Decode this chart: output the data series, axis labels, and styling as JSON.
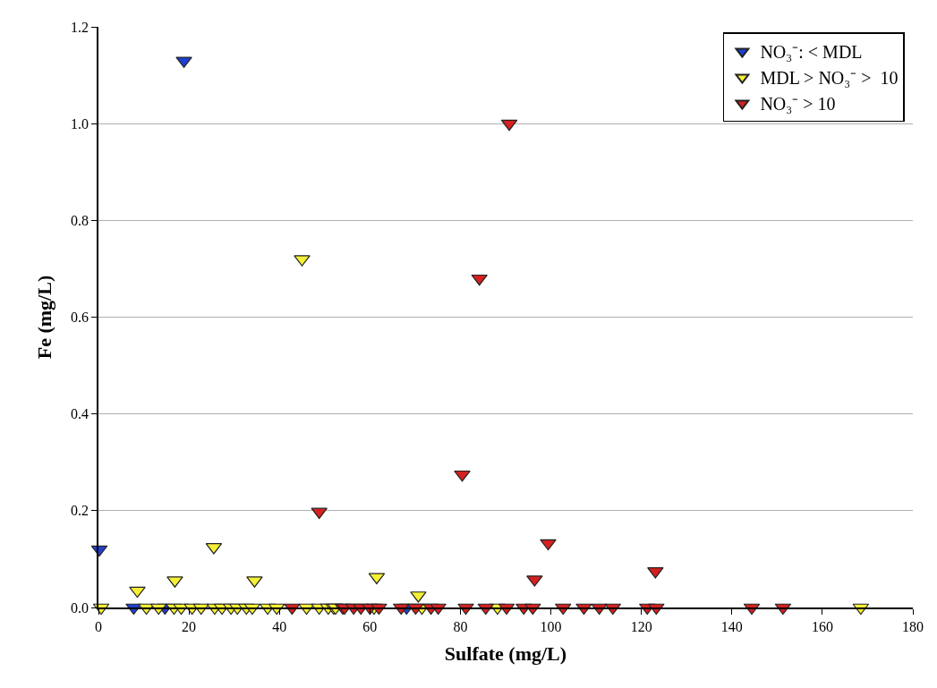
{
  "chart_data": {
    "type": "scatter",
    "xlabel": "Sulfate (mg/L)",
    "ylabel": "Fe (mg/L)",
    "xlim": [
      0,
      180
    ],
    "ylim": [
      0,
      1.2
    ],
    "xticks": [
      0,
      20,
      40,
      60,
      80,
      100,
      120,
      140,
      160,
      180
    ],
    "yticks": [
      {
        "value": 0,
        "label": "0.0"
      },
      0.2,
      0.4,
      0.6,
      0.8,
      {
        "value": 1,
        "label": "1.0"
      },
      1.2
    ],
    "grid": "y",
    "legend": "top right",
    "marker": "triangle",
    "series": [
      {
        "name": "NO₃⁻: < MDL",
        "color": "#1f3fd0",
        "x": [
          0.2,
          18.9,
          7.8,
          14.7,
          68.1
        ],
        "values": [
          0.12,
          1.13,
          0,
          0,
          0
        ]
      },
      {
        "name": "MDL > NO₃⁻ >  10",
        "color": "#f5f035",
        "x": [
          8.6,
          16.9,
          25.5,
          34.5,
          61.5,
          70.7,
          45,
          0.6,
          10.6,
          13.3,
          16.7,
          18.3,
          20.7,
          22.7,
          25.7,
          27.3,
          29.3,
          30.7,
          32.7,
          34,
          37.4,
          39.4,
          46,
          48.8,
          50.8,
          52,
          52.4,
          60.9,
          71.5,
          88.2,
          168.5
        ],
        "values": [
          0.035,
          0.056,
          0.125,
          0.056,
          0.063,
          0.025,
          0.72,
          0,
          0,
          0,
          0,
          0,
          0,
          0,
          0,
          0,
          0,
          0,
          0,
          0,
          0,
          0,
          0,
          0,
          0,
          0,
          0,
          0,
          0,
          0,
          0
        ]
      },
      {
        "name": "NO₃⁻ > 10",
        "color": "#d42020",
        "x": [
          90.8,
          84.2,
          80.4,
          48.8,
          99.4,
          96.4,
          123.1,
          42.8,
          54,
          54.4,
          56.4,
          58,
          60,
          62,
          66.9,
          70.1,
          73.5,
          75.1,
          81.2,
          85.6,
          90.2,
          94,
          96,
          102.7,
          107.3,
          110.7,
          113.7,
          121.3,
          123.3,
          144.4,
          151.3
        ],
        "values": [
          1.0,
          0.68,
          0.275,
          0.198,
          0.133,
          0.058,
          0.075,
          0,
          0,
          0,
          0,
          0,
          0,
          0,
          0,
          0,
          0,
          0,
          0,
          0,
          0,
          0,
          0,
          0,
          0,
          0,
          0,
          0,
          0,
          0,
          0
        ]
      }
    ]
  }
}
